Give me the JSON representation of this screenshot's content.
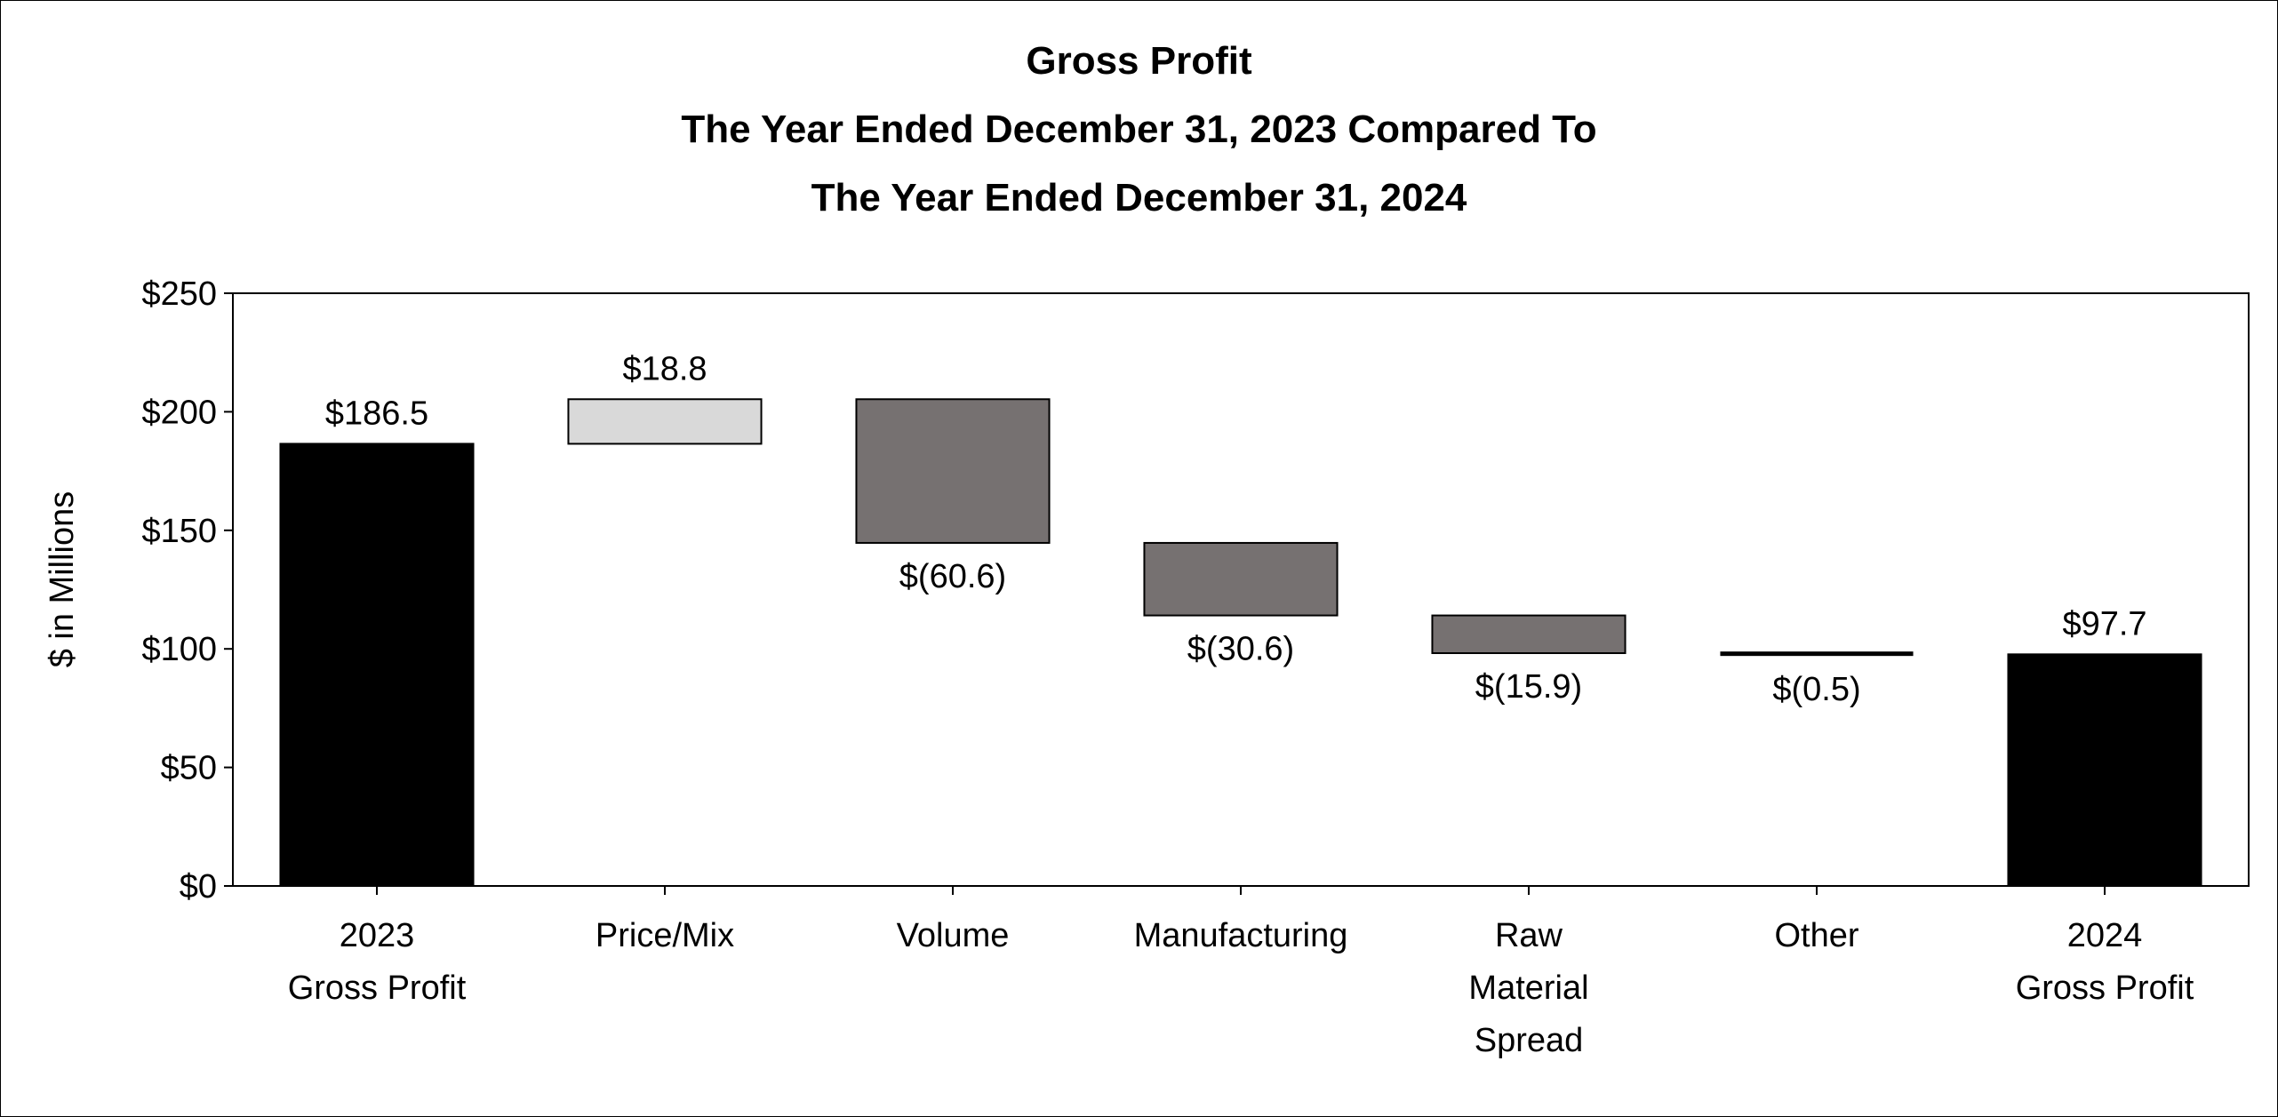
{
  "chart_data": {
    "type": "waterfall",
    "title": "Gross Profit",
    "subtitle_lines": [
      "The Year Ended December 31, 2023 Compared To",
      "The Year Ended December 31, 2024"
    ],
    "ylabel": "$ in Millions",
    "ylim": [
      0,
      250
    ],
    "yticks": [
      {
        "value": 0,
        "label": "$0"
      },
      {
        "value": 50,
        "label": "$50"
      },
      {
        "value": 100,
        "label": "$100"
      },
      {
        "value": 150,
        "label": "$150"
      },
      {
        "value": 200,
        "label": "$200"
      },
      {
        "value": 250,
        "label": "$250"
      }
    ],
    "grid": false,
    "legend": "none",
    "colors": {
      "total": "#000000",
      "increase": "#d9d9d9",
      "decrease": "#767171"
    },
    "bars": [
      {
        "category_lines": [
          "2023",
          "Gross Profit"
        ],
        "kind": "total",
        "value": 186.5,
        "label": "$186.5"
      },
      {
        "category_lines": [
          "Price/Mix"
        ],
        "kind": "increase",
        "value": 18.8,
        "label": "$18.8"
      },
      {
        "category_lines": [
          "Volume"
        ],
        "kind": "decrease",
        "value": -60.6,
        "label": "$(60.6)"
      },
      {
        "category_lines": [
          "Manufacturing"
        ],
        "kind": "decrease",
        "value": -30.6,
        "label": "$(30.6)"
      },
      {
        "category_lines": [
          "Raw",
          "Material",
          "Spread"
        ],
        "kind": "decrease",
        "value": -15.9,
        "label": "$(15.9)"
      },
      {
        "category_lines": [
          "Other"
        ],
        "kind": "decrease",
        "value": -0.5,
        "label": "$(0.5)"
      },
      {
        "category_lines": [
          "2024",
          "Gross Profit"
        ],
        "kind": "total",
        "value": 97.7,
        "label": "$97.7"
      }
    ]
  }
}
